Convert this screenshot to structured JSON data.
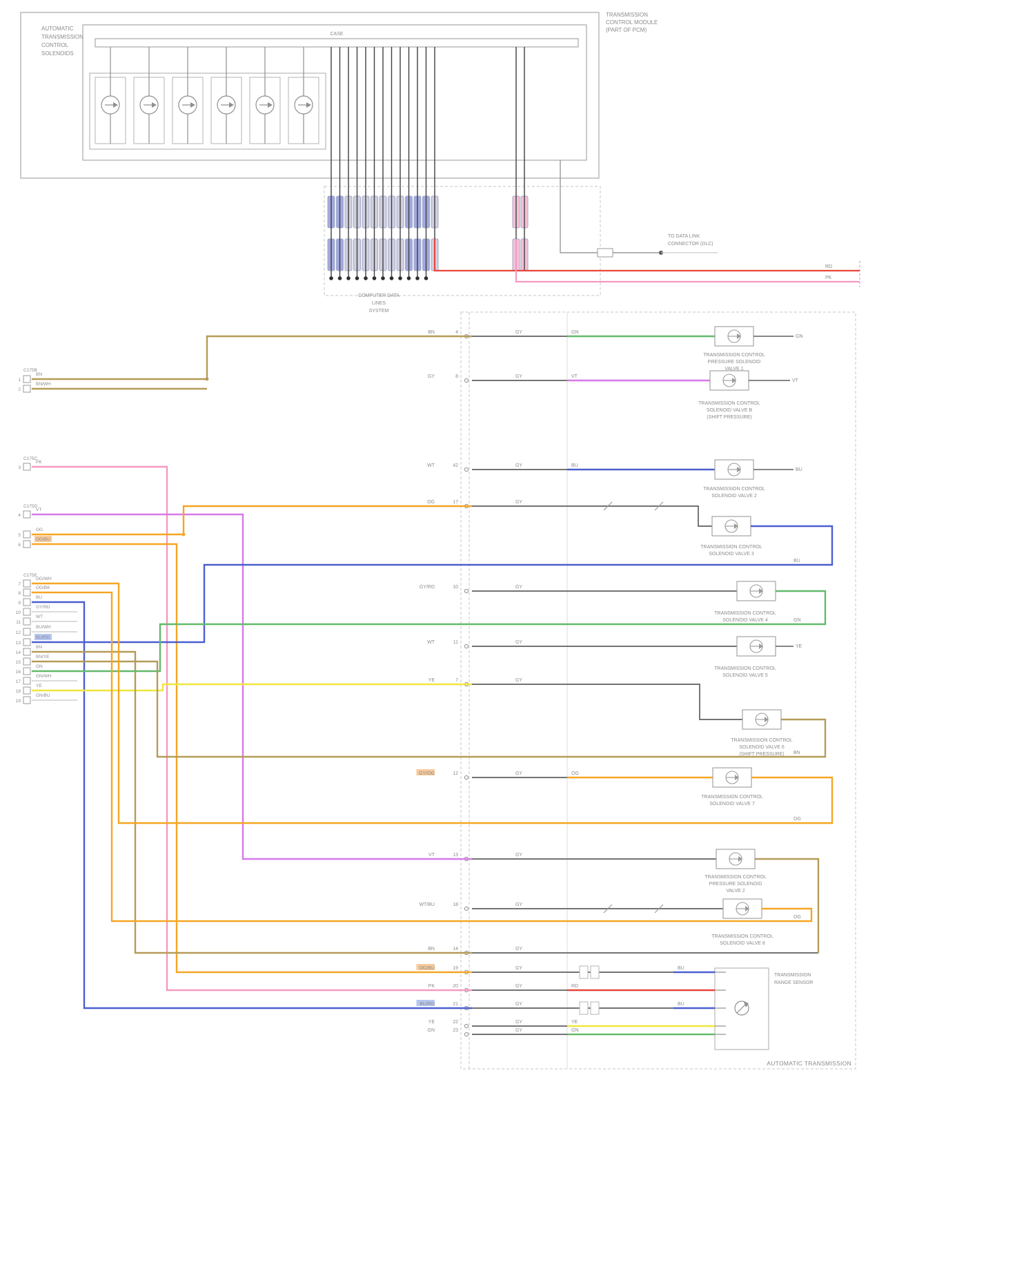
{
  "module": {
    "label_lines": [
      "AUTOMATIC",
      "TRANSMISSION",
      "CONTROL",
      "SOLENOIDS"
    ],
    "case_label": "CASE",
    "pcm_lines": [
      "TRANSMISSION",
      "CONTROL MODULE",
      "(PART OF PCM)"
    ]
  },
  "connector": {
    "splice_label_lines": [
      "COMPUTER DATA",
      "LINES",
      "SYSTEM"
    ]
  },
  "data_bus": {
    "caption_lines": [
      "TO DATA LINK",
      "CONNECTOR (DLC)"
    ],
    "right_wire_labels": [
      "RD",
      "PK"
    ]
  },
  "transmission": {
    "label": "AUTOMATIC TRANSMISSION",
    "sensor_caption": [
      "TRANSMISSION",
      "RANGE SENSOR"
    ]
  },
  "left_groups": [
    "C175B",
    "C175C",
    "C175D",
    "C175E"
  ],
  "left_pins": [
    {
      "num": "1",
      "label": "BN"
    },
    {
      "num": "2",
      "label": "BN/WH"
    },
    {
      "num": "3",
      "label": "PK"
    },
    {
      "num": "4",
      "label": "VT"
    },
    {
      "num": "5",
      "label": "OG"
    },
    {
      "num": "6",
      "label": "OG/BU",
      "hl": "orange"
    },
    {
      "num": "7",
      "label": "OG/WH"
    },
    {
      "num": "8",
      "label": "OG/BK"
    },
    {
      "num": "9",
      "label": "BU"
    },
    {
      "num": "10",
      "label": "GY/RD"
    },
    {
      "num": "11",
      "label": "WT"
    },
    {
      "num": "12",
      "label": "BU/WH"
    },
    {
      "num": "13",
      "label": "BU/RD",
      "hl": "blue"
    },
    {
      "num": "14",
      "label": "BN"
    },
    {
      "num": "15",
      "label": "BN/YE"
    },
    {
      "num": "16",
      "label": "GN"
    },
    {
      "num": "17",
      "label": "GN/WH"
    },
    {
      "num": "18",
      "label": "YE"
    },
    {
      "num": "19",
      "label": "GN/BU"
    }
  ],
  "rows": [
    {
      "pin": "4",
      "left": "BN",
      "mid": "GY",
      "tail": "GN",
      "end": "GN",
      "caption": [
        "TRANSMISSION CONTROL",
        "PRESSURE SOLENOID",
        "VALVE 1"
      ]
    },
    {
      "pin": "8",
      "left": "GY",
      "mid": "GY",
      "tail": "VT",
      "end": "VT",
      "caption": [
        "TRANSMISSION CONTROL",
        "SOLENOID VALVE B",
        "(SHIFT PRESSURE)"
      ]
    },
    {
      "pin": "42",
      "left": "WT",
      "mid": "GY",
      "tail": "BU",
      "end": "BU",
      "caption": [
        "TRANSMISSION CONTROL",
        "SOLENOID VALVE 2"
      ]
    },
    {
      "pin": "17",
      "left": "OG",
      "mid": "GY",
      "ret": "BU",
      "caption": [
        "TRANSMISSION CONTROL",
        "SOLENOID VALVE 3"
      ]
    },
    {
      "pin": "10",
      "left": "GY/RD",
      "mid": "GY",
      "ret": "GN",
      "caption": [
        "TRANSMISSION CONTROL",
        "SOLENOID VALVE 4"
      ]
    },
    {
      "pin": "11",
      "left": "WT",
      "mid": "GY",
      "end": "YE",
      "caption": [
        "TRANSMISSION CONTROL",
        "SOLENOID VALVE 5"
      ]
    },
    {
      "pin": "7",
      "left": "YE",
      "mid": "GY",
      "ret": "BN",
      "caption": [
        "TRANSMISSION CONTROL",
        "SOLENOID VALVE 6",
        "(SHIFT PRESSURE)"
      ]
    },
    {
      "pin": "12",
      "left": "GY/OG",
      "hl": "orange",
      "mid": "GY",
      "tail": "OG",
      "ret": "OG",
      "caption": [
        "TRANSMISSION CONTROL",
        "SOLENOID VALVE 7"
      ]
    },
    {
      "pin": "13",
      "left": "VT",
      "mid": "GY",
      "caption": [
        "TRANSMISSION CONTROL",
        "PRESSURE SOLENOID",
        "VALVE 2"
      ]
    },
    {
      "pin": "18",
      "left": "WT/BU",
      "mid": "GY",
      "ret": "OG",
      "caption": [
        "TRANSMISSION CONTROL",
        "SOLENOID VALVE 8"
      ]
    },
    {
      "pin": "14",
      "left": "BN",
      "mid": "GY"
    },
    {
      "pin": "19",
      "left": "OG/BU",
      "hl": "orange",
      "mid": "GY",
      "tail": "BU"
    },
    {
      "pin": "20",
      "left": "PK",
      "mid": "GY",
      "tail": "RD"
    },
    {
      "pin": "21",
      "left": "BU/RD",
      "hl": "blue",
      "mid": "GY",
      "tail": "BU"
    },
    {
      "pin": "22",
      "left": "YE",
      "mid": "GY",
      "tail": "YE"
    },
    {
      "pin": "23",
      "left": "GN",
      "mid": "GY",
      "tail": "GN"
    }
  ],
  "colors": {
    "gray": "#5f5f5f",
    "tan": "#b49b57",
    "green": "#62b96a",
    "magenta": "#d678e8",
    "blue": "#4a5fd0",
    "orange": "#f5a623",
    "yellow": "#f0e63c",
    "pink": "#f49ac1",
    "red": "#e8453c",
    "violet": "#b57ee8",
    "bus_blue": "#99a0dd",
    "bus_gray": "#ccccdd",
    "bus_pink": "#f3bcd4"
  }
}
